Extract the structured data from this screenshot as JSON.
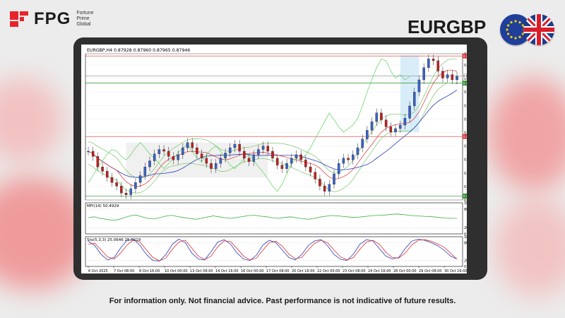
{
  "brand": {
    "name": "FPG",
    "subtitle_lines": [
      "Fortune",
      "Prime",
      "Global"
    ],
    "accent_color": "#e8232a"
  },
  "pair_title": "EURGBP",
  "flags": [
    "eu-flag-icon",
    "uk-flag-icon"
  ],
  "disclaimer": "For information only. Not financial advice. Past performance is not indicative of future results.",
  "chart_data": [
    {
      "type": "line",
      "symbol_header": "EURGBP,H4  0.87928 0.87960 0.87965 0.87946",
      "price_scale_labels": [
        "0.88200",
        "0.88070",
        "0.87915",
        "0.87760",
        "0.87605",
        "0.87450",
        "0.87295",
        "0.87140",
        "0.86985",
        "0.86830",
        "0.86675",
        "0.86520"
      ],
      "x_tick_labels": [
        "6 Oct 2025",
        "7 Oct 08:00",
        "8 Oct 16:00",
        "10 Oct 00:00",
        "13 Oct 08:00",
        "14 Oct 16:00",
        "16 Oct 00:00",
        "17 Oct 08:00",
        "20 Oct 16:00",
        "22 Oct 00:00",
        "23 Oct 08:00",
        "24 Oct 16:00",
        "28 Oct 00:00",
        "29 Oct 08:00",
        "30 Oct 16:00"
      ],
      "highlighted_prices": {
        "top_red": "0.88174",
        "current": "0.87946",
        "green_level": "0.87862",
        "middle_red": "0.87249",
        "bottom_green": "0.86566"
      },
      "close_series": [
        0.8708,
        0.8702,
        0.869,
        0.8685,
        0.8678,
        0.8672,
        0.8668,
        0.866,
        0.8658,
        0.8665,
        0.8672,
        0.868,
        0.869,
        0.8697,
        0.8705,
        0.871,
        0.8708,
        0.8702,
        0.8698,
        0.8704,
        0.8712,
        0.8718,
        0.8712,
        0.8705,
        0.87,
        0.8694,
        0.8688,
        0.8694,
        0.87,
        0.8706,
        0.8712,
        0.8716,
        0.8708,
        0.87,
        0.8696,
        0.8704,
        0.871,
        0.8714,
        0.8708,
        0.87,
        0.8692,
        0.8688,
        0.8694,
        0.87,
        0.8704,
        0.8698,
        0.869,
        0.8684,
        0.8676,
        0.8668,
        0.8662,
        0.867,
        0.8682,
        0.8694,
        0.87,
        0.8698,
        0.8704,
        0.8712,
        0.8722,
        0.8732,
        0.8742,
        0.8752,
        0.8744,
        0.8736,
        0.873,
        0.8734,
        0.8738,
        0.8746,
        0.876,
        0.8776,
        0.879,
        0.8804,
        0.8814,
        0.8812,
        0.88,
        0.8792,
        0.8796,
        0.879,
        0.8794
      ]
    },
    {
      "type": "line",
      "indicator_label": "MFI(14) 50.4929",
      "scale_labels": [
        "100",
        "80",
        "20",
        "0"
      ],
      "values": [
        52,
        55,
        50,
        47,
        44,
        46,
        52,
        58,
        61,
        55,
        50,
        48,
        52,
        57,
        60,
        56,
        53,
        50,
        47,
        50,
        54,
        58,
        55,
        52,
        50,
        53,
        56,
        59,
        60,
        57,
        55,
        52,
        50,
        53,
        55,
        52,
        49,
        47,
        50,
        54,
        57,
        59,
        58,
        56,
        54,
        53,
        55,
        57,
        59,
        60,
        61,
        63,
        64,
        62,
        60,
        58,
        57,
        56,
        55,
        53,
        51,
        50,
        50
      ]
    },
    {
      "type": "line",
      "indicator_label": "Sto(5,3,3) 25.0646 25.5219",
      "scale_labels": [
        "100",
        "80",
        "20",
        "0"
      ],
      "series": [
        {
          "values": [
            85,
            70,
            40,
            22,
            30,
            62,
            88,
            92,
            70,
            40,
            20,
            18,
            40,
            75,
            92,
            80,
            45,
            25,
            22,
            50,
            82,
            90,
            75,
            45,
            25,
            20,
            38,
            72,
            88,
            80,
            55,
            30,
            22,
            40,
            70,
            86,
            90,
            70,
            40,
            24,
            20,
            42,
            75,
            90,
            86,
            60,
            35,
            25,
            30,
            60,
            85,
            92,
            88,
            80,
            70,
            55,
            35,
            25
          ]
        },
        {
          "values": [
            75,
            78,
            55,
            32,
            25,
            45,
            72,
            90,
            82,
            55,
            30,
            19,
            28,
            58,
            82,
            88,
            62,
            35,
            23,
            35,
            66,
            86,
            84,
            60,
            35,
            22,
            28,
            55,
            80,
            85,
            68,
            42,
            26,
            30,
            55,
            78,
            88,
            80,
            55,
            32,
            22,
            30,
            58,
            82,
            88,
            75,
            48,
            30,
            28,
            45,
            72,
            88,
            90,
            85,
            76,
            65,
            45,
            25
          ]
        }
      ]
    }
  ]
}
